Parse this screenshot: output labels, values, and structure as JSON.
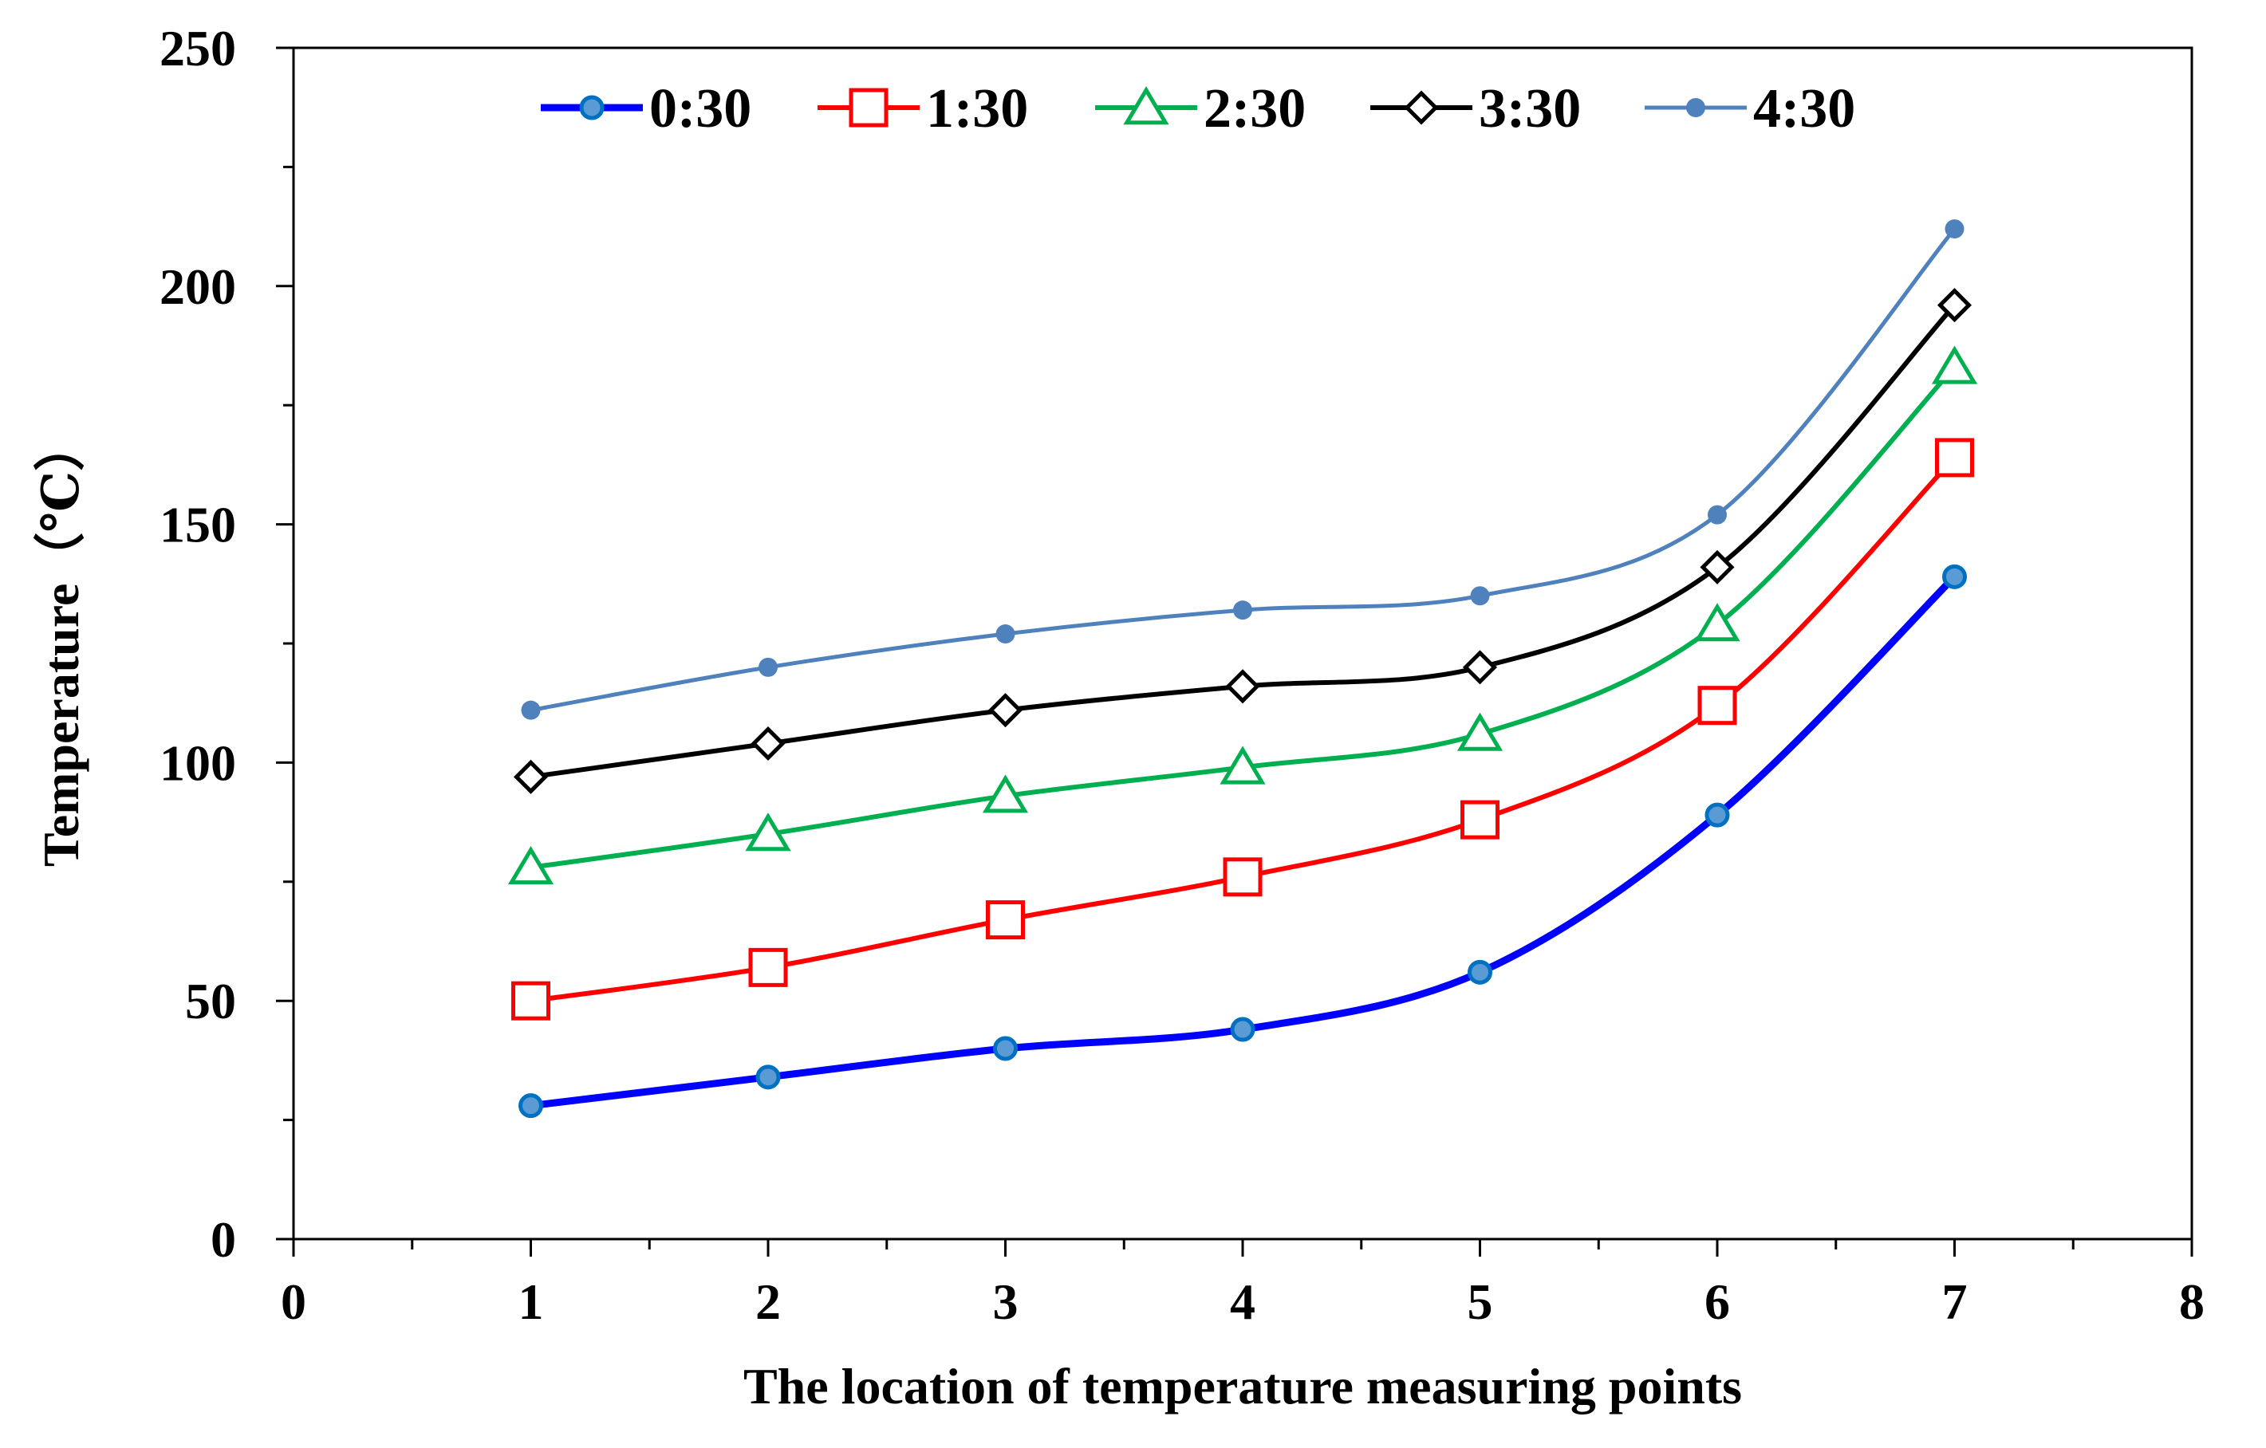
{
  "chart_data": {
    "type": "line",
    "title": "",
    "xlabel": "The location of temperature measuring points",
    "ylabel": "Temperature（℃）",
    "xlim": [
      0,
      8
    ],
    "ylim": [
      0,
      250
    ],
    "x_ticks": [
      0,
      1,
      2,
      3,
      4,
      5,
      6,
      7,
      8
    ],
    "y_ticks": [
      0,
      50,
      100,
      150,
      200,
      250
    ],
    "x_minor_step": 0.5,
    "y_minor_step": 25,
    "grid": false,
    "legend_position": "top",
    "x": [
      1,
      2,
      3,
      4,
      5,
      6,
      7
    ],
    "series": [
      {
        "name": "0:30",
        "color": "#0000FF",
        "marker": "circle",
        "marker_color": "#0070C0",
        "values": [
          28,
          34,
          40,
          44,
          56,
          89,
          139
        ]
      },
      {
        "name": "1:30",
        "color": "#FF0000",
        "marker": "square",
        "marker_color": "#FF0000",
        "values": [
          50,
          57,
          67,
          76,
          88,
          112,
          164
        ]
      },
      {
        "name": "2:30",
        "color": "#00B050",
        "marker": "triangle",
        "marker_color": "#00B050",
        "values": [
          78,
          85,
          93,
          99,
          106,
          129,
          183
        ]
      },
      {
        "name": "3:30",
        "color": "#000000",
        "marker": "diamond",
        "marker_color": "#000000",
        "values": [
          97,
          104,
          111,
          116,
          120,
          141,
          196
        ]
      },
      {
        "name": "4:30",
        "color": "#4F81BD",
        "marker": "dot",
        "marker_color": "#4F81BD",
        "values": [
          111,
          120,
          127,
          132,
          135,
          152,
          212
        ]
      }
    ]
  }
}
